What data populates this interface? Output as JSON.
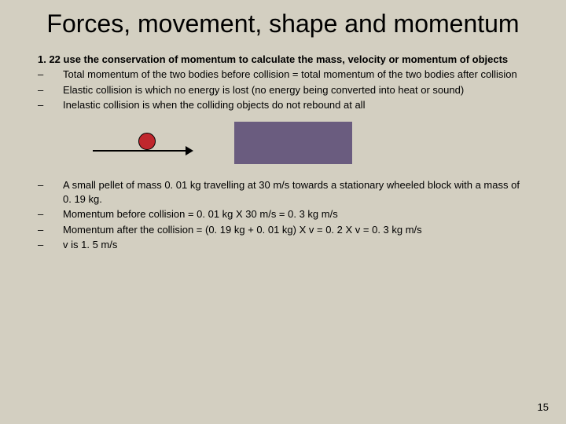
{
  "title": "Forces, movement, shape and momentum",
  "lead": "1. 22 use the conservation of momentum to calculate the mass, velocity or momentum of objects",
  "bullets_top": [
    "Total momentum of the two bodies before collision = total momentum of the two bodies after collision",
    "Elastic collision is which no energy is lost (no energy being converted into heat or sound)",
    "Inelastic collision is when the colliding objects do not rebound at all"
  ],
  "bullets_bottom": [
    "A small pellet of mass 0. 01 kg travelling at 30 m/s towards a stationary wheeled block with a mass of 0. 19 kg.",
    "Momentum before collision = 0. 01 kg X 30 m/s = 0. 3 kg m/s",
    "Momentum after the collision = (0. 19 kg + 0. 01 kg) X v = 0. 2 X v = 0. 3 kg m/s",
    " v is 1. 5 m/s"
  ],
  "diagram": {
    "pellet_color": "#c0272d",
    "block_color": "#6a5c7f",
    "arrow_color": "#000000",
    "background": "#d3cfc1"
  },
  "page_number": "15"
}
